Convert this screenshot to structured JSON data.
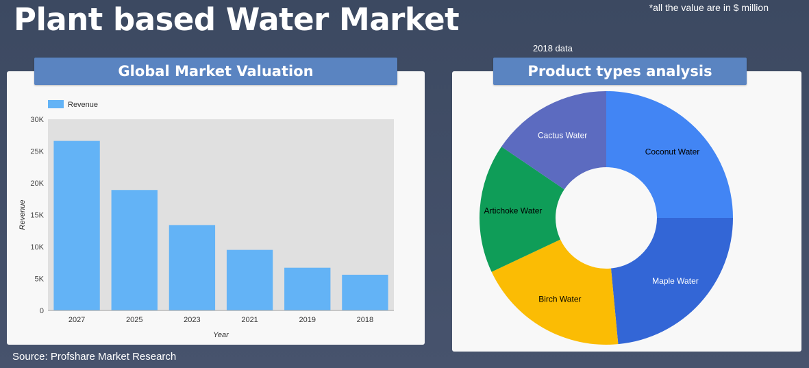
{
  "page": {
    "title": "Plant based Water Market",
    "note": "*all the value are in $ million",
    "year_note": "2018 data",
    "source": "Source: Profshare Market Research"
  },
  "panels": {
    "left_title": "Global Market Valuation",
    "right_title": "Product types analysis"
  },
  "colors": {
    "bar": "#63b3f6",
    "plot_bg": "#e0e0e0",
    "header": "#5a84c1"
  },
  "chart_data": [
    {
      "type": "bar",
      "title": "Global Market Valuation",
      "legend": [
        "Revenue"
      ],
      "legend_position": "top-left",
      "xlabel": "Year",
      "ylabel": "Revenue",
      "ylim": [
        0,
        30000
      ],
      "yticks": [
        0,
        5000,
        10000,
        15000,
        20000,
        25000,
        30000
      ],
      "ytick_labels": [
        "0",
        "5K",
        "10K",
        "15K",
        "20K",
        "25K",
        "30K"
      ],
      "categories": [
        "2027",
        "2025",
        "2023",
        "2021",
        "2019",
        "2018"
      ],
      "series": [
        {
          "name": "Revenue",
          "values": [
            26600,
            18900,
            13400,
            9500,
            6700,
            5600
          ],
          "color": "#63b3f6"
        }
      ]
    },
    {
      "type": "pie",
      "title": "Product types analysis",
      "donut": true,
      "labels": [
        "Coconut Water",
        "Maple Water",
        "Birch Water",
        "Artichoke Water",
        "Cactus Water"
      ],
      "values": [
        25,
        23.5,
        19.5,
        16.5,
        15.5
      ],
      "colors": [
        "#4285f4",
        "#3366d6",
        "#fbbc04",
        "#0f9d58",
        "#5c6bc0"
      ],
      "label_colors": [
        "#000000",
        "#ffffff",
        "#000000",
        "#000000",
        "#ffffff"
      ]
    }
  ]
}
